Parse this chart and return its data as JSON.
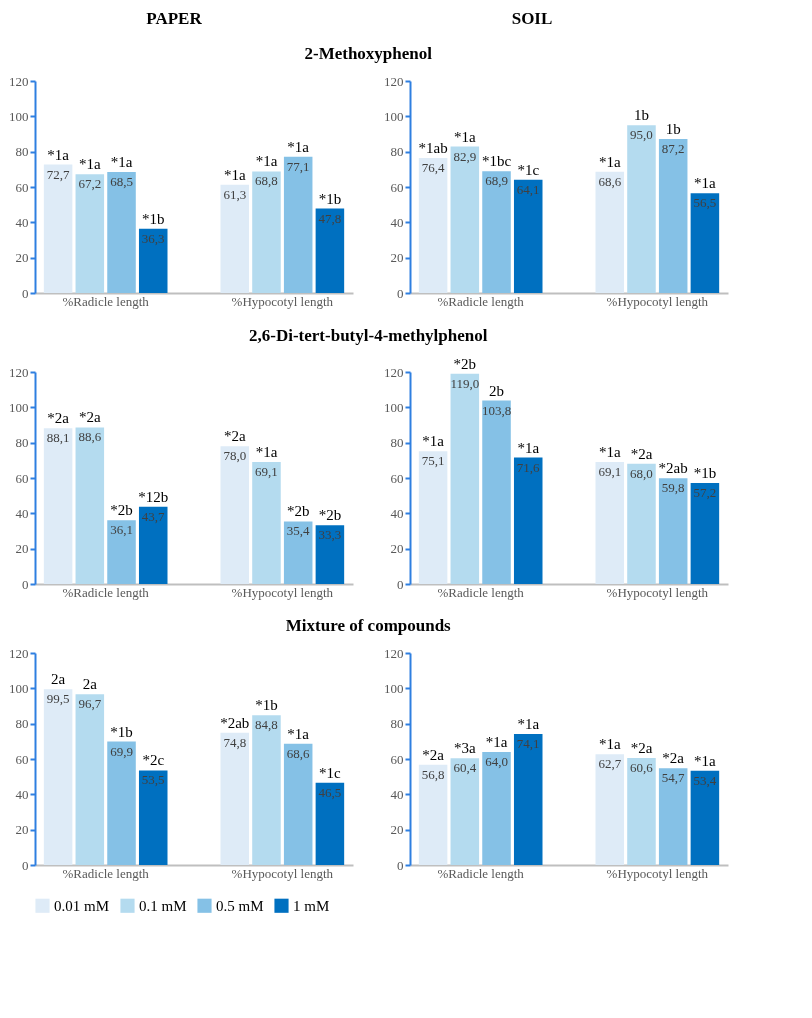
{
  "chart_data": [
    {
      "type": "bar",
      "title": "PAPER",
      "subtitle": "2-Methoxyphenol",
      "categories": [
        "%Radicle length",
        "%Hypocotyl length"
      ],
      "ylim": [
        0,
        120
      ],
      "yticks": [
        0,
        20,
        40,
        60,
        80,
        100,
        120
      ],
      "legend": "bottom",
      "series": [
        {
          "name": "0.01 mM",
          "color": "#deebf7",
          "values": [
            72.7,
            61.3
          ],
          "value_labels": [
            "72,7",
            "61,3"
          ]
        },
        {
          "name": "0.1 mM",
          "color": "#b4dbef",
          "values": [
            67.2,
            68.8
          ],
          "value_labels": [
            "67,2",
            "68,8"
          ]
        },
        {
          "name": "0.5 mM",
          "color": "#85c1e6",
          "values": [
            68.5,
            77.1
          ],
          "value_labels": [
            "68,5",
            "77,1"
          ]
        },
        {
          "name": "1 mM",
          "color": "#0070c0",
          "values": [
            36.3,
            47.8
          ],
          "value_labels": [
            "36,3",
            "47,8"
          ]
        }
      ],
      "annotations": [
        "*1a",
        "*1a",
        "*1a",
        "*1b",
        "*1a",
        "*1a",
        "*1a",
        "*1b"
      ]
    },
    {
      "type": "bar",
      "title": "SOIL",
      "categories": [
        "%Radicle length",
        "%Hypocotyl length"
      ],
      "ylim": [
        0,
        120
      ],
      "yticks": [
        0,
        20,
        40,
        60,
        80,
        100,
        120
      ],
      "legend": "bottom",
      "series": [
        {
          "name": "0.01 mM",
          "color": "#deebf7",
          "values": [
            76.4,
            68.6
          ],
          "value_labels": [
            "76,4",
            "68,6"
          ]
        },
        {
          "name": "0.1 mM",
          "color": "#b4dbef",
          "values": [
            82.9,
            95.0
          ],
          "value_labels": [
            "82,9",
            "95,0"
          ]
        },
        {
          "name": "0.5 mM",
          "color": "#85c1e6",
          "values": [
            68.9,
            87.2
          ],
          "value_labels": [
            "68,9",
            "87,2"
          ]
        },
        {
          "name": "1 mM",
          "color": "#0070c0",
          "values": [
            64.1,
            56.5
          ],
          "value_labels": [
            "64,1",
            "56,5"
          ]
        }
      ],
      "annotations": [
        "*1ab",
        "*1a",
        "*1bc",
        "*1c",
        "*1a",
        "1b",
        "1b",
        "*1a"
      ]
    },
    {
      "type": "bar",
      "subtitle": "2,6-Di-tert-butyl-4-methylphenol",
      "categories": [
        "%Radicle length",
        "%Hypocotyl length"
      ],
      "ylim": [
        0,
        120
      ],
      "yticks": [
        0,
        20,
        40,
        60,
        80,
        100,
        120
      ],
      "legend": "bottom",
      "series": [
        {
          "name": "0.01 mM",
          "color": "#deebf7",
          "values": [
            88.1,
            78.0
          ],
          "value_labels": [
            "88,1",
            "78,0"
          ]
        },
        {
          "name": "0.1 mM",
          "color": "#b4dbef",
          "values": [
            88.6,
            69.1
          ],
          "value_labels": [
            "88,6",
            "69,1"
          ]
        },
        {
          "name": "0.5 mM",
          "color": "#85c1e6",
          "values": [
            36.1,
            35.4
          ],
          "value_labels": [
            "36,1",
            "35,4"
          ]
        },
        {
          "name": "1 mM",
          "color": "#0070c0",
          "values": [
            43.7,
            33.3
          ],
          "value_labels": [
            "43,7",
            "33,3"
          ]
        }
      ],
      "annotations": [
        "*2a",
        "*2a",
        "*2b",
        "*12b",
        "*2a",
        "*1a",
        "*2b",
        "*2b"
      ]
    },
    {
      "type": "bar",
      "categories": [
        "%Radicle length",
        "%Hypocotyl length"
      ],
      "ylim": [
        0,
        120
      ],
      "yticks": [
        0,
        20,
        40,
        60,
        80,
        100,
        120
      ],
      "legend": "bottom",
      "series": [
        {
          "name": "0.01 mM",
          "color": "#deebf7",
          "values": [
            75.1,
            69.1
          ],
          "value_labels": [
            "75,1",
            "69,1"
          ]
        },
        {
          "name": "0.1 mM",
          "color": "#b4dbef",
          "values": [
            119.0,
            68.0
          ],
          "value_labels": [
            "119,0",
            "68,0"
          ]
        },
        {
          "name": "0.5 mM",
          "color": "#85c1e6",
          "values": [
            103.8,
            59.8
          ],
          "value_labels": [
            "103,8",
            "59,8"
          ]
        },
        {
          "name": "1 mM",
          "color": "#0070c0",
          "values": [
            71.6,
            57.2
          ],
          "value_labels": [
            "71,6",
            "57,2"
          ]
        }
      ],
      "annotations": [
        "*1a",
        "*2b",
        "2b",
        "*1a",
        "*1a",
        "*2a",
        "*2ab",
        "*1b"
      ]
    },
    {
      "type": "bar",
      "subtitle": "Mixture of compounds",
      "categories": [
        "%Radicle length",
        "%Hypocotyl length"
      ],
      "ylim": [
        0,
        120
      ],
      "yticks": [
        0,
        20,
        40,
        60,
        80,
        100,
        120
      ],
      "legend": "bottom",
      "series": [
        {
          "name": "0.01 mM",
          "color": "#deebf7",
          "values": [
            99.5,
            74.8
          ],
          "value_labels": [
            "99,5",
            "74,8"
          ]
        },
        {
          "name": "0.1 mM",
          "color": "#b4dbef",
          "values": [
            96.7,
            84.8
          ],
          "value_labels": [
            "96,7",
            "84,8"
          ]
        },
        {
          "name": "0.5 mM",
          "color": "#85c1e6",
          "values": [
            69.9,
            68.6
          ],
          "value_labels": [
            "69,9",
            "68,6"
          ]
        },
        {
          "name": "1 mM",
          "color": "#0070c0",
          "values": [
            53.5,
            46.5
          ],
          "value_labels": [
            "53,5",
            "46,5"
          ]
        }
      ],
      "annotations": [
        "2a",
        "2a",
        "*1b",
        "*2c",
        "*2ab",
        "*1b",
        "*1a",
        "*1c"
      ]
    },
    {
      "type": "bar",
      "categories": [
        "%Radicle length",
        "%Hypocotyl length"
      ],
      "ylim": [
        0,
        120
      ],
      "yticks": [
        0,
        20,
        40,
        60,
        80,
        100,
        120
      ],
      "legend": "bottom",
      "series": [
        {
          "name": "0.01 mM",
          "color": "#deebf7",
          "values": [
            56.8,
            62.7
          ],
          "value_labels": [
            "56,8",
            "62,7"
          ]
        },
        {
          "name": "0.1 mM",
          "color": "#b4dbef",
          "values": [
            60.4,
            60.6
          ],
          "value_labels": [
            "60,4",
            "60,6"
          ]
        },
        {
          "name": "0.5 mM",
          "color": "#85c1e6",
          "values": [
            64.0,
            54.7
          ],
          "value_labels": [
            "64,0",
            "54,7"
          ]
        },
        {
          "name": "1 mM",
          "color": "#0070c0",
          "values": [
            74.1,
            53.4
          ],
          "value_labels": [
            "74,1",
            "53,4"
          ]
        }
      ],
      "annotations": [
        "*2a",
        "*3a",
        "*1a",
        "*1a",
        "*1a",
        "*2a",
        "*2a",
        "*1a"
      ]
    }
  ]
}
